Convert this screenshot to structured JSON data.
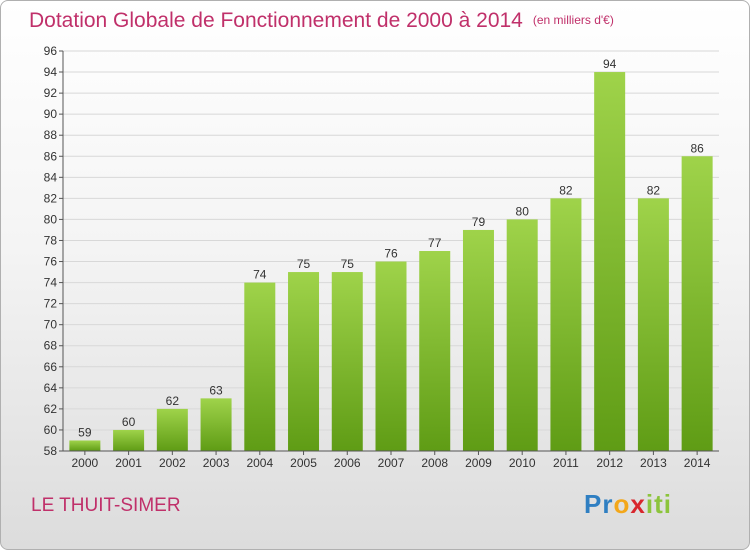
{
  "title": "Dotation Globale de Fonctionnement de 2000 à 2014",
  "unit": "(en milliers d'€)",
  "commune": "LE THUIT-SIMER",
  "logo": {
    "letters": [
      "P",
      "r",
      "o",
      "x",
      "i",
      "t",
      "i"
    ],
    "colors": [
      "#2f7fc2",
      "#2f7fc2",
      "#f3a71a",
      "#d8262d",
      "#8cc43c",
      "#8cc43c",
      "#8cc43c"
    ]
  },
  "colors": {
    "bar_light": "#9fd34a",
    "bar_dark": "#5f9c15",
    "title": "#c0306a"
  },
  "chart_data": {
    "type": "bar",
    "categories": [
      "2000",
      "2001",
      "2002",
      "2003",
      "2004",
      "2005",
      "2006",
      "2007",
      "2008",
      "2009",
      "2010",
      "2011",
      "2012",
      "2013",
      "2014"
    ],
    "values": [
      59,
      60,
      62,
      63,
      74,
      75,
      75,
      76,
      77,
      79,
      80,
      82,
      94,
      82,
      86
    ],
    "ylim": [
      58,
      96
    ],
    "yticks": [
      58,
      60,
      62,
      64,
      66,
      68,
      70,
      72,
      74,
      76,
      78,
      80,
      82,
      84,
      86,
      88,
      90,
      92,
      94,
      96
    ],
    "grid": true
  }
}
